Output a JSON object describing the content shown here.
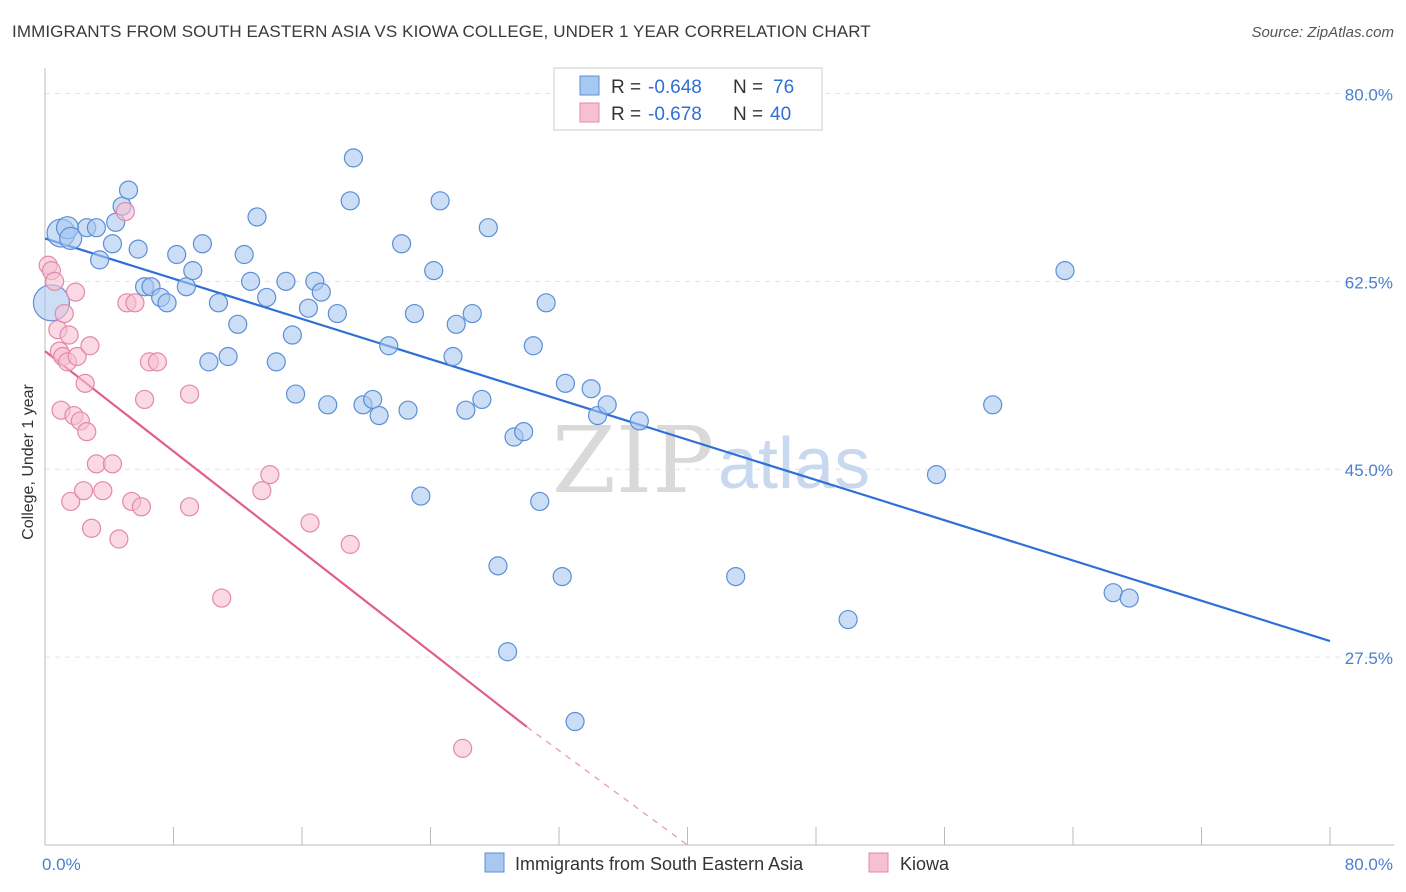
{
  "title": "IMMIGRANTS FROM SOUTH EASTERN ASIA VS KIOWA COLLEGE, UNDER 1 YEAR CORRELATION CHART",
  "source": "Source: ZipAtlas.com",
  "watermark": {
    "zip": "ZIP",
    "atlas": "atlas"
  },
  "legend": {
    "rows": [
      {
        "r_label": "R =",
        "r_value": "-0.648",
        "n_label": "N =",
        "n_value": "76",
        "color": "#a9c8f0",
        "stroke": "#5b8fd6"
      },
      {
        "r_label": "R =",
        "r_value": "-0.678",
        "n_label": "N =",
        "n_value": "40",
        "color": "#f7c0d2",
        "stroke": "#e389a8"
      }
    ]
  },
  "chart_data": {
    "type": "scatter",
    "title": "IMMIGRANTS FROM SOUTH EASTERN ASIA VS KIOWA COLLEGE, UNDER 1 YEAR CORRELATION CHART",
    "xlabel": "",
    "ylabel": "College, Under 1 year",
    "xlim": [
      0,
      80
    ],
    "ylim": [
      10,
      82
    ],
    "x_tick_labels": [
      "0.0%",
      "80.0%"
    ],
    "y_ticks": [
      27.5,
      45.0,
      62.5,
      80.0
    ],
    "y_tick_labels": [
      "27.5%",
      "45.0%",
      "62.5%",
      "80.0%"
    ],
    "grid": true,
    "legend_position": "top-center",
    "series": [
      {
        "name": "Immigrants from South Eastern Asia",
        "color": "#a9c8f0",
        "stroke": "#5b8fd6",
        "trend": {
          "x": [
            0,
            80
          ],
          "y": [
            66.5,
            29.0
          ]
        },
        "points": [
          [
            0.4,
            60.5
          ],
          [
            1.0,
            67.0
          ],
          [
            1.4,
            67.5
          ],
          [
            1.6,
            66.5
          ],
          [
            2.6,
            67.5
          ],
          [
            3.2,
            67.5
          ],
          [
            3.4,
            64.5
          ],
          [
            4.2,
            66.0
          ],
          [
            4.4,
            68.0
          ],
          [
            4.8,
            69.5
          ],
          [
            5.2,
            71.0
          ],
          [
            5.8,
            65.5
          ],
          [
            6.2,
            62.0
          ],
          [
            6.6,
            62.0
          ],
          [
            7.2,
            61.0
          ],
          [
            7.6,
            60.5
          ],
          [
            8.2,
            65.0
          ],
          [
            8.8,
            62.0
          ],
          [
            9.2,
            63.5
          ],
          [
            9.8,
            66.0
          ],
          [
            10.2,
            55.0
          ],
          [
            10.8,
            60.5
          ],
          [
            11.4,
            55.5
          ],
          [
            12.0,
            58.5
          ],
          [
            12.4,
            65.0
          ],
          [
            12.8,
            62.5
          ],
          [
            13.2,
            68.5
          ],
          [
            13.8,
            61.0
          ],
          [
            14.4,
            55.0
          ],
          [
            15.0,
            62.5
          ],
          [
            15.4,
            57.5
          ],
          [
            15.6,
            52.0
          ],
          [
            16.4,
            60.0
          ],
          [
            16.8,
            62.5
          ],
          [
            17.2,
            61.5
          ],
          [
            17.6,
            51.0
          ],
          [
            18.2,
            59.5
          ],
          [
            19.0,
            70.0
          ],
          [
            19.2,
            74.0
          ],
          [
            19.8,
            51.0
          ],
          [
            20.4,
            51.5
          ],
          [
            20.8,
            50.0
          ],
          [
            21.4,
            56.5
          ],
          [
            22.2,
            66.0
          ],
          [
            22.6,
            50.5
          ],
          [
            23.0,
            59.5
          ],
          [
            23.4,
            42.5
          ],
          [
            24.2,
            63.5
          ],
          [
            24.6,
            70.0
          ],
          [
            25.4,
            55.5
          ],
          [
            25.6,
            58.5
          ],
          [
            26.2,
            50.5
          ],
          [
            26.6,
            59.5
          ],
          [
            27.2,
            51.5
          ],
          [
            27.6,
            67.5
          ],
          [
            28.2,
            36.0
          ],
          [
            28.8,
            28.0
          ],
          [
            29.2,
            48.0
          ],
          [
            29.8,
            48.5
          ],
          [
            30.4,
            56.5
          ],
          [
            30.8,
            42.0
          ],
          [
            31.2,
            60.5
          ],
          [
            32.2,
            35.0
          ],
          [
            32.4,
            53.0
          ],
          [
            33.0,
            21.5
          ],
          [
            34.0,
            52.5
          ],
          [
            34.4,
            50.0
          ],
          [
            35.0,
            51.0
          ],
          [
            37.0,
            49.5
          ],
          [
            43.0,
            35.0
          ],
          [
            50.0,
            31.0
          ],
          [
            55.5,
            44.5
          ],
          [
            59.0,
            51.0
          ],
          [
            63.5,
            63.5
          ],
          [
            66.5,
            33.5
          ],
          [
            67.5,
            33.0
          ]
        ],
        "sizes": [
          18,
          14,
          11,
          11,
          9,
          9,
          9,
          9,
          9,
          9,
          9,
          9,
          9,
          9,
          9,
          9,
          9,
          9,
          9,
          9,
          9,
          9,
          9,
          9,
          9,
          9,
          9,
          9,
          9,
          9,
          9,
          9,
          9,
          9,
          9,
          9,
          9,
          9,
          9,
          9,
          9,
          9,
          9,
          9,
          9,
          9,
          9,
          9,
          9,
          9,
          9,
          9,
          9,
          9,
          9,
          9,
          9,
          9,
          9,
          9,
          9,
          9,
          9,
          9,
          9,
          9,
          9,
          9,
          9,
          9,
          9,
          9,
          9,
          9,
          9,
          9
        ]
      },
      {
        "name": "Kiowa",
        "color": "#f7c0d2",
        "stroke": "#e389a8",
        "trend": {
          "x": [
            0,
            30
          ],
          "y": [
            56.0,
            21.0
          ],
          "dashed_to": {
            "x": 40,
            "y": 9.5
          }
        },
        "points": [
          [
            0.2,
            64.0
          ],
          [
            0.4,
            63.5
          ],
          [
            0.6,
            62.5
          ],
          [
            0.8,
            58.0
          ],
          [
            0.9,
            56.0
          ],
          [
            1.0,
            50.5
          ],
          [
            1.1,
            55.5
          ],
          [
            1.2,
            59.5
          ],
          [
            1.4,
            55.0
          ],
          [
            1.5,
            57.5
          ],
          [
            1.6,
            42.0
          ],
          [
            1.8,
            50.0
          ],
          [
            1.9,
            61.5
          ],
          [
            2.0,
            55.5
          ],
          [
            2.2,
            49.5
          ],
          [
            2.4,
            43.0
          ],
          [
            2.5,
            53.0
          ],
          [
            2.6,
            48.5
          ],
          [
            2.8,
            56.5
          ],
          [
            2.9,
            39.5
          ],
          [
            3.2,
            45.5
          ],
          [
            3.6,
            43.0
          ],
          [
            4.2,
            45.5
          ],
          [
            4.6,
            38.5
          ],
          [
            5.0,
            69.0
          ],
          [
            5.1,
            60.5
          ],
          [
            5.6,
            60.5
          ],
          [
            5.4,
            42.0
          ],
          [
            6.0,
            41.5
          ],
          [
            6.2,
            51.5
          ],
          [
            6.5,
            55.0
          ],
          [
            7.0,
            55.0
          ],
          [
            9.0,
            52.0
          ],
          [
            9.0,
            41.5
          ],
          [
            11.0,
            33.0
          ],
          [
            13.5,
            43.0
          ],
          [
            14.0,
            44.5
          ],
          [
            16.5,
            40.0
          ],
          [
            19.0,
            38.0
          ],
          [
            26.0,
            19.0
          ]
        ],
        "sizes": [
          9,
          9,
          9,
          9,
          9,
          9,
          9,
          9,
          9,
          9,
          9,
          9,
          9,
          9,
          9,
          9,
          9,
          9,
          9,
          9,
          9,
          9,
          9,
          9,
          9,
          9,
          9,
          9,
          9,
          9,
          9,
          9,
          9,
          9,
          9,
          9,
          9,
          9,
          9,
          9
        ]
      }
    ]
  }
}
